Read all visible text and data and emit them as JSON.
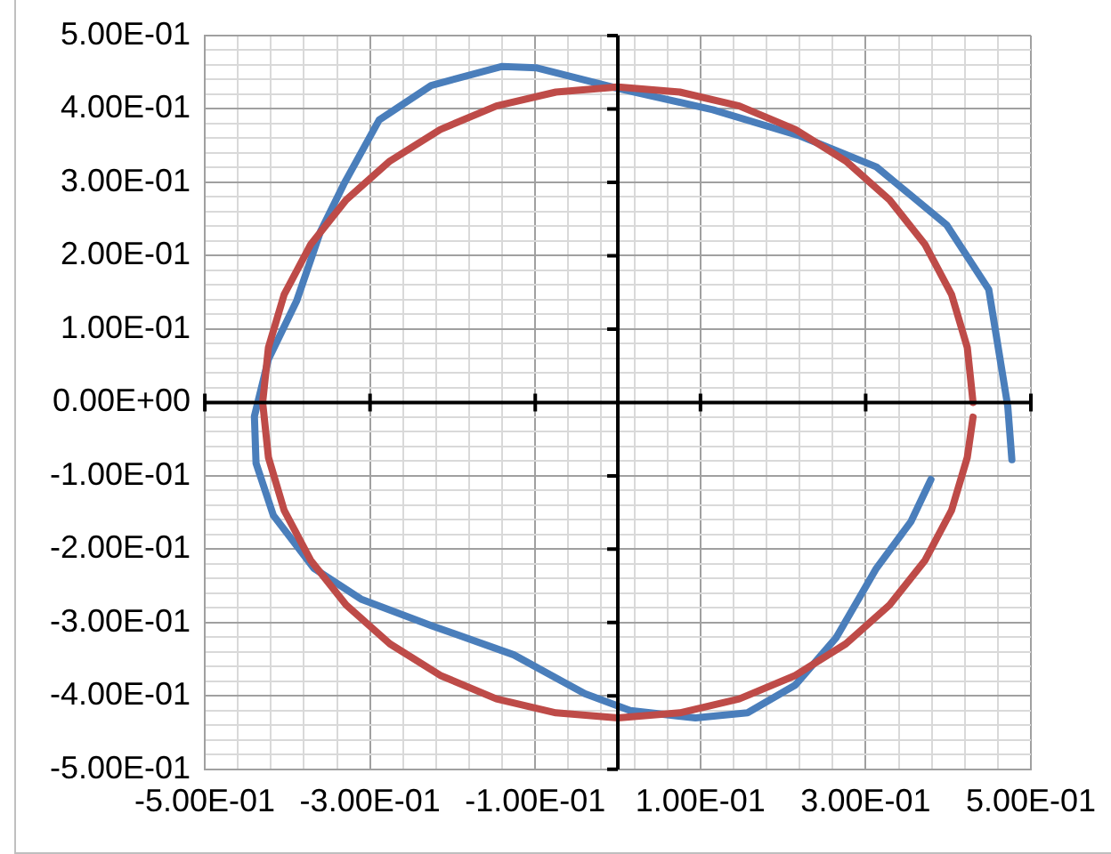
{
  "chart_data": {
    "type": "line",
    "marker": "none",
    "grid": true,
    "legend": false,
    "xlim": [
      -0.5,
      0.5
    ],
    "ylim": [
      -0.5,
      0.5
    ],
    "xticks": [
      {
        "value": -0.5,
        "label": "-5.00E-01"
      },
      {
        "value": -0.46,
        "label": null
      },
      {
        "value": -0.42,
        "label": null
      },
      {
        "value": -0.38,
        "label": null
      },
      {
        "value": -0.34,
        "label": null
      },
      {
        "value": -0.3,
        "label": "-3.00E-01"
      },
      {
        "value": -0.26,
        "label": null
      },
      {
        "value": -0.22,
        "label": null
      },
      {
        "value": -0.18,
        "label": null
      },
      {
        "value": -0.14,
        "label": null
      },
      {
        "value": -0.1,
        "label": "-1.00E-01"
      },
      {
        "value": -0.06,
        "label": null
      },
      {
        "value": -0.02,
        "label": null
      },
      {
        "value": 0.02,
        "label": null
      },
      {
        "value": 0.06,
        "label": null
      },
      {
        "value": 0.1,
        "label": "1.00E-01"
      },
      {
        "value": 0.14,
        "label": null
      },
      {
        "value": 0.18,
        "label": null
      },
      {
        "value": 0.22,
        "label": null
      },
      {
        "value": 0.26,
        "label": null
      },
      {
        "value": 0.3,
        "label": "3.00E-01"
      },
      {
        "value": 0.34,
        "label": null
      },
      {
        "value": 0.38,
        "label": null
      },
      {
        "value": 0.42,
        "label": null
      },
      {
        "value": 0.46,
        "label": null
      },
      {
        "value": 0.5,
        "label": "5.00E-01"
      }
    ],
    "yticks": [
      {
        "value": -0.5,
        "label": "-5.00E-01"
      },
      {
        "value": -0.48,
        "label": null
      },
      {
        "value": -0.46,
        "label": null
      },
      {
        "value": -0.44,
        "label": null
      },
      {
        "value": -0.42,
        "label": null
      },
      {
        "value": -0.4,
        "label": "-4.00E-01"
      },
      {
        "value": -0.38,
        "label": null
      },
      {
        "value": -0.36,
        "label": null
      },
      {
        "value": -0.34,
        "label": null
      },
      {
        "value": -0.32,
        "label": null
      },
      {
        "value": -0.3,
        "label": "-3.00E-01"
      },
      {
        "value": -0.28,
        "label": null
      },
      {
        "value": -0.26,
        "label": null
      },
      {
        "value": -0.24,
        "label": null
      },
      {
        "value": -0.22,
        "label": null
      },
      {
        "value": -0.2,
        "label": "-2.00E-01"
      },
      {
        "value": -0.18,
        "label": null
      },
      {
        "value": -0.16,
        "label": null
      },
      {
        "value": -0.14,
        "label": null
      },
      {
        "value": -0.12,
        "label": null
      },
      {
        "value": -0.1,
        "label": "-1.00E-01"
      },
      {
        "value": -0.08,
        "label": null
      },
      {
        "value": -0.06,
        "label": null
      },
      {
        "value": -0.04,
        "label": null
      },
      {
        "value": -0.02,
        "label": null
      },
      {
        "value": 0,
        "label": "0.00E+00"
      },
      {
        "value": 0.02,
        "label": null
      },
      {
        "value": 0.04,
        "label": null
      },
      {
        "value": 0.06,
        "label": null
      },
      {
        "value": 0.08,
        "label": null
      },
      {
        "value": 0.1,
        "label": "1.00E-01"
      },
      {
        "value": 0.12,
        "label": null
      },
      {
        "value": 0.14,
        "label": null
      },
      {
        "value": 0.16,
        "label": null
      },
      {
        "value": 0.18,
        "label": null
      },
      {
        "value": 0.2,
        "label": "2.00E-01"
      },
      {
        "value": 0.22,
        "label": null
      },
      {
        "value": 0.24,
        "label": null
      },
      {
        "value": 0.26,
        "label": null
      },
      {
        "value": 0.28,
        "label": null
      },
      {
        "value": 0.3,
        "label": "3.00E-01"
      },
      {
        "value": 0.32,
        "label": null
      },
      {
        "value": 0.34,
        "label": null
      },
      {
        "value": 0.36,
        "label": null
      },
      {
        "value": 0.38,
        "label": null
      },
      {
        "value": 0.4,
        "label": "4.00E-01"
      },
      {
        "value": 0.42,
        "label": null
      },
      {
        "value": 0.44,
        "label": null
      },
      {
        "value": 0.46,
        "label": null
      },
      {
        "value": 0.48,
        "label": null
      },
      {
        "value": 0.5,
        "label": "5.00E-01"
      }
    ],
    "series": [
      {
        "color": "#4a7ebb",
        "x": [
          0.477,
          0.472,
          0.449,
          0.398,
          0.313,
          0.221,
          0.115,
          0,
          -0.098,
          -0.14,
          -0.226,
          -0.289,
          -0.332,
          -0.36,
          -0.389,
          -0.423,
          -0.44,
          -0.438,
          -0.417,
          -0.368,
          -0.311,
          -0.226,
          -0.126,
          -0.04,
          0.015,
          0.094,
          0.157,
          0.215,
          0.264,
          0.313,
          0.355,
          0.379
        ],
        "values": [
          -0.078,
          -0.005,
          0.154,
          0.242,
          0.321,
          0.363,
          0.399,
          0.428,
          0.456,
          0.458,
          0.432,
          0.385,
          0.297,
          0.233,
          0.138,
          0.059,
          -0.019,
          -0.083,
          -0.154,
          -0.226,
          -0.268,
          -0.304,
          -0.344,
          -0.397,
          -0.42,
          -0.43,
          -0.423,
          -0.385,
          -0.321,
          -0.226,
          -0.162,
          -0.105
        ]
      },
      {
        "color": "#be4b48",
        "x": [
          0.43,
          0.423,
          0.404,
          0.372,
          0.329,
          0.276,
          0.215,
          0.147,
          0.075,
          0,
          -0.075,
          -0.147,
          -0.215,
          -0.276,
          -0.329,
          -0.372,
          -0.404,
          -0.423,
          -0.43,
          -0.423,
          -0.404,
          -0.372,
          -0.329,
          -0.276,
          -0.215,
          -0.147,
          -0.075,
          0,
          0.075,
          0.147,
          0.215,
          0.276,
          0.329,
          0.372,
          0.404,
          0.423,
          0.43
        ],
        "values": [
          0,
          0.075,
          0.147,
          0.215,
          0.276,
          0.329,
          0.372,
          0.404,
          0.423,
          0.43,
          0.423,
          0.404,
          0.372,
          0.329,
          0.276,
          0.215,
          0.147,
          0.075,
          0,
          -0.075,
          -0.147,
          -0.215,
          -0.276,
          -0.329,
          -0.372,
          -0.404,
          -0.423,
          -0.43,
          -0.423,
          -0.404,
          -0.372,
          -0.329,
          -0.276,
          -0.215,
          -0.147,
          -0.075,
          -0.02
        ]
      }
    ]
  }
}
